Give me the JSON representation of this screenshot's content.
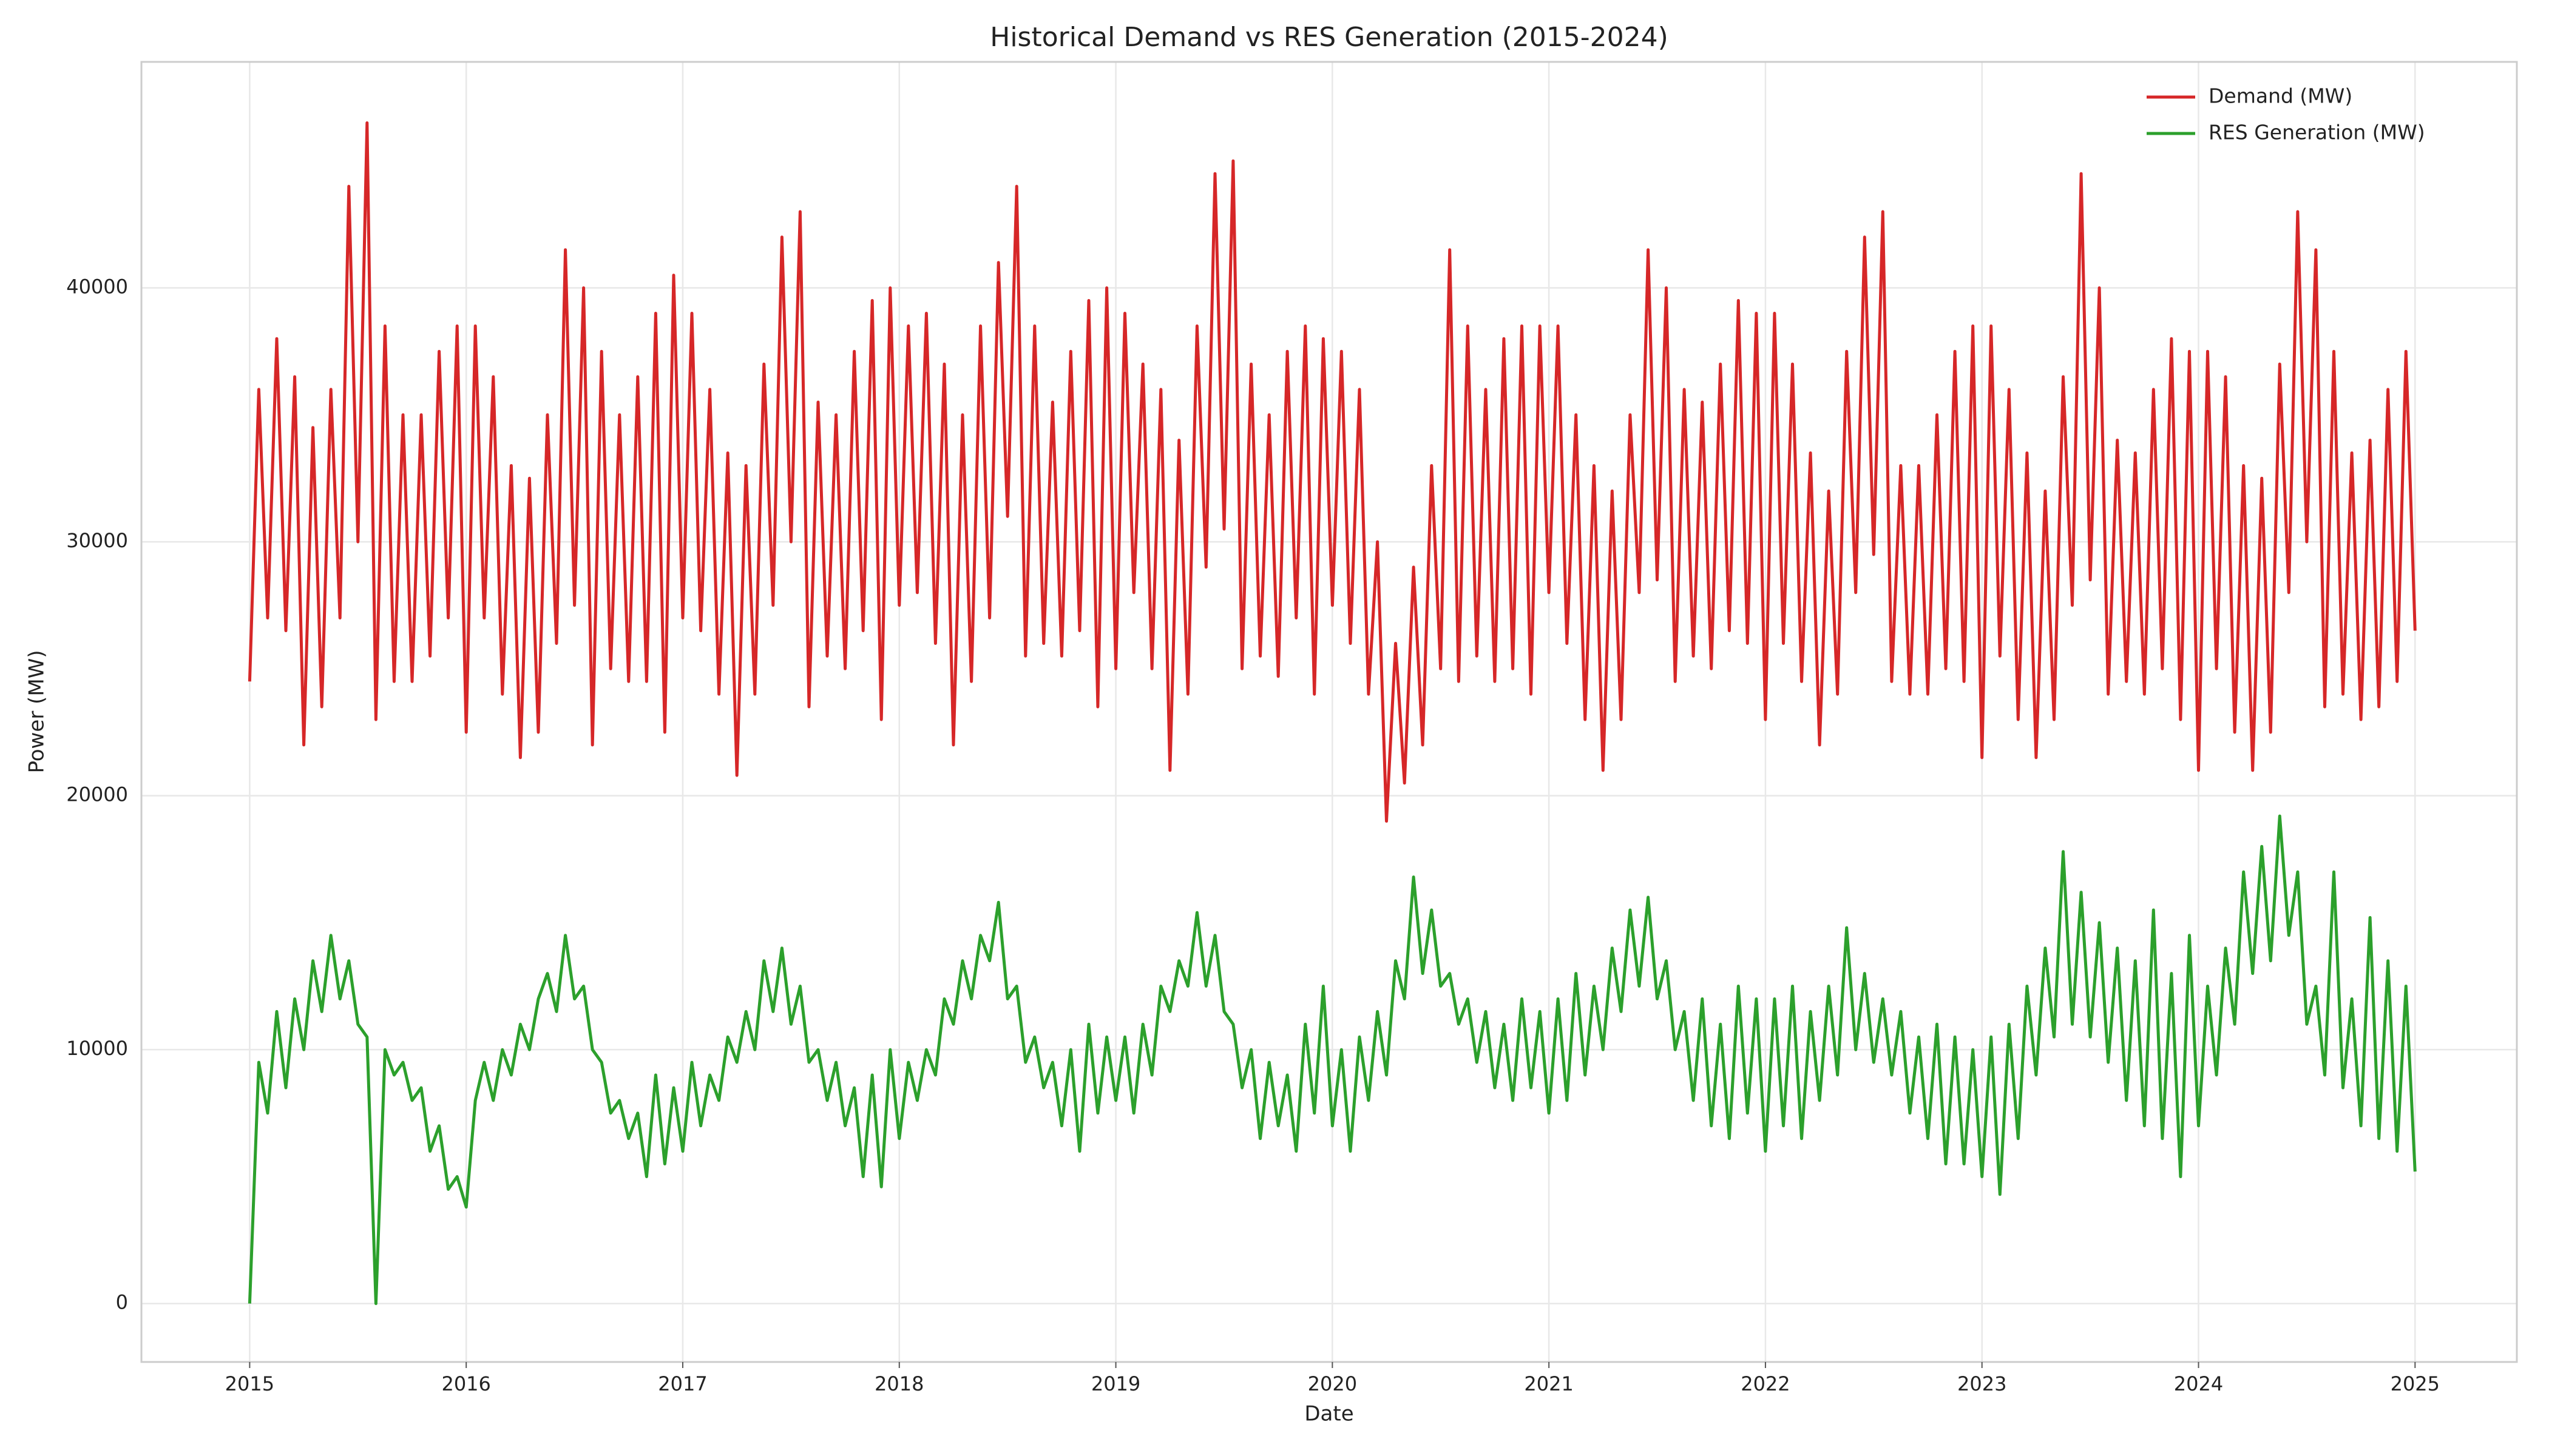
{
  "chart_data": {
    "type": "line",
    "title": "Historical Demand vs RES Generation (2015-2024)",
    "xlabel": "Date",
    "ylabel": "Power (MW)",
    "xlim": [
      2014.5,
      2025.47
    ],
    "xticks": [
      2015,
      2016,
      2017,
      2018,
      2019,
      2020,
      2021,
      2022,
      2023,
      2024,
      2025
    ],
    "ylim": [
      -2300,
      48900
    ],
    "yticks": [
      0,
      10000,
      20000,
      30000,
      40000
    ],
    "grid": true,
    "legend": "upper right",
    "x": [
      2015,
      2015.042,
      2015.083,
      2015.125,
      2015.167,
      2015.208,
      2015.25,
      2015.292,
      2015.333,
      2015.375,
      2015.417,
      2015.458,
      2015.5,
      2015.542,
      2015.583,
      2015.625,
      2015.667,
      2015.708,
      2015.75,
      2015.792,
      2015.833,
      2015.875,
      2015.917,
      2015.958,
      2016,
      2016.042,
      2016.083,
      2016.125,
      2016.167,
      2016.208,
      2016.25,
      2016.292,
      2016.333,
      2016.375,
      2016.417,
      2016.458,
      2016.5,
      2016.542,
      2016.583,
      2016.625,
      2016.667,
      2016.708,
      2016.75,
      2016.792,
      2016.833,
      2016.875,
      2016.917,
      2016.958,
      2017,
      2017.042,
      2017.083,
      2017.125,
      2017.167,
      2017.208,
      2017.25,
      2017.292,
      2017.333,
      2017.375,
      2017.417,
      2017.458,
      2017.5,
      2017.542,
      2017.583,
      2017.625,
      2017.667,
      2017.708,
      2017.75,
      2017.792,
      2017.833,
      2017.875,
      2017.917,
      2017.958,
      2018,
      2018.042,
      2018.083,
      2018.125,
      2018.167,
      2018.208,
      2018.25,
      2018.292,
      2018.333,
      2018.375,
      2018.417,
      2018.458,
      2018.5,
      2018.542,
      2018.583,
      2018.625,
      2018.667,
      2018.708,
      2018.75,
      2018.792,
      2018.833,
      2018.875,
      2018.917,
      2018.958,
      2019,
      2019.042,
      2019.083,
      2019.125,
      2019.167,
      2019.208,
      2019.25,
      2019.292,
      2019.333,
      2019.375,
      2019.417,
      2019.458,
      2019.5,
      2019.542,
      2019.583,
      2019.625,
      2019.667,
      2019.708,
      2019.75,
      2019.792,
      2019.833,
      2019.875,
      2019.917,
      2019.958,
      2020,
      2020.042,
      2020.083,
      2020.125,
      2020.167,
      2020.208,
      2020.25,
      2020.292,
      2020.333,
      2020.375,
      2020.417,
      2020.458,
      2020.5,
      2020.542,
      2020.583,
      2020.625,
      2020.667,
      2020.708,
      2020.75,
      2020.792,
      2020.833,
      2020.875,
      2020.917,
      2020.958,
      2021,
      2021.042,
      2021.083,
      2021.125,
      2021.167,
      2021.208,
      2021.25,
      2021.292,
      2021.333,
      2021.375,
      2021.417,
      2021.458,
      2021.5,
      2021.542,
      2021.583,
      2021.625,
      2021.667,
      2021.708,
      2021.75,
      2021.792,
      2021.833,
      2021.875,
      2021.917,
      2021.958,
      2022,
      2022.042,
      2022.083,
      2022.125,
      2022.167,
      2022.208,
      2022.25,
      2022.292,
      2022.333,
      2022.375,
      2022.417,
      2022.458,
      2022.5,
      2022.542,
      2022.583,
      2022.625,
      2022.667,
      2022.708,
      2022.75,
      2022.792,
      2022.833,
      2022.875,
      2022.917,
      2022.958,
      2023,
      2023.042,
      2023.083,
      2023.125,
      2023.167,
      2023.208,
      2023.25,
      2023.292,
      2023.333,
      2023.375,
      2023.417,
      2023.458,
      2023.5,
      2023.542,
      2023.583,
      2023.625,
      2023.667,
      2023.708,
      2023.75,
      2023.792,
      2023.833,
      2023.875,
      2023.917,
      2023.958,
      2024,
      2024.042,
      2024.083,
      2024.125,
      2024.167,
      2024.208,
      2024.25,
      2024.292,
      2024.333,
      2024.375,
      2024.417,
      2024.458,
      2024.5,
      2024.542,
      2024.583,
      2024.625,
      2024.667,
      2024.708,
      2024.75,
      2024.792,
      2024.833,
      2024.875,
      2024.917,
      2024.958,
      2025
    ],
    "series": [
      {
        "name": "Demand (MW)",
        "color": "#d62728",
        "values": [
          24500,
          36000,
          27000,
          38000,
          26500,
          36500,
          22000,
          34500,
          23500,
          36000,
          27000,
          44000,
          30000,
          46500,
          23000,
          38500,
          24500,
          35000,
          24500,
          35000,
          25500,
          37500,
          27000,
          38500,
          22500,
          38500,
          27000,
          36500,
          24000,
          33000,
          21500,
          32500,
          22500,
          35000,
          26000,
          41500,
          27500,
          40000,
          22000,
          37500,
          25000,
          35000,
          24500,
          36500,
          24500,
          39000,
          22500,
          40500,
          27000,
          39000,
          26500,
          36000,
          24000,
          33500,
          20800,
          33000,
          24000,
          37000,
          27500,
          42000,
          30000,
          43000,
          23500,
          35500,
          25500,
          35000,
          25000,
          37500,
          26500,
          39500,
          23000,
          40000,
          27500,
          38500,
          28000,
          39000,
          26000,
          37000,
          22000,
          35000,
          24500,
          38500,
          27000,
          41000,
          31000,
          44000,
          25500,
          38500,
          26000,
          35500,
          25500,
          37500,
          26500,
          39500,
          23500,
          40000,
          25000,
          39000,
          28000,
          37000,
          25000,
          36000,
          21000,
          34000,
          24000,
          38500,
          29000,
          44500,
          30500,
          45000,
          25000,
          37000,
          25500,
          35000,
          24700,
          37500,
          27000,
          38500,
          24000,
          38000,
          27500,
          37500,
          26000,
          36000,
          24000,
          30000,
          19000,
          26000,
          20500,
          29000,
          22000,
          33000,
          25000,
          41500,
          24500,
          38500,
          25500,
          36000,
          24500,
          38000,
          25000,
          38500,
          24000,
          38500,
          28000,
          38500,
          26000,
          35000,
          23000,
          33000,
          21000,
          32000,
          23000,
          35000,
          28000,
          41500,
          28500,
          40000,
          24500,
          36000,
          25500,
          35500,
          25000,
          37000,
          26500,
          39500,
          26000,
          39000,
          23000,
          39000,
          26000,
          37000,
          24500,
          33500,
          22000,
          32000,
          24000,
          37500,
          28000,
          42000,
          29500,
          43000,
          24500,
          33000,
          24000,
          33000,
          24000,
          35000,
          25000,
          37500,
          24500,
          38500,
          21500,
          38500,
          25500,
          36000,
          23000,
          33500,
          21500,
          32000,
          23000,
          36500,
          27500,
          44500,
          28500,
          40000,
          24000,
          34000,
          24500,
          33500,
          24000,
          36000,
          25000,
          38000,
          23000,
          37500,
          21000,
          37500,
          25000,
          36500,
          22500,
          33000,
          21000,
          32500,
          22500,
          37000,
          28000,
          43000,
          30000,
          41500,
          23500,
          37500,
          24000,
          33500,
          23000,
          34000,
          23500,
          36000,
          24500,
          37500,
          26500
        ]
      },
      {
        "name": "RES Generation (MW)",
        "color": "#2ca02c",
        "values": [
          0,
          9500,
          7500,
          11500,
          8500,
          12000,
          10000,
          13500,
          11500,
          14500,
          12000,
          13500,
          11000,
          10500,
          0,
          10000,
          9000,
          9500,
          8000,
          8500,
          6000,
          7000,
          4500,
          5000,
          3800,
          8000,
          9500,
          8000,
          10000,
          9000,
          11000,
          10000,
          12000,
          13000,
          11500,
          14500,
          12000,
          12500,
          10000,
          9500,
          7500,
          8000,
          6500,
          7500,
          5000,
          9000,
          5500,
          8500,
          6000,
          9500,
          7000,
          9000,
          8000,
          10500,
          9500,
          11500,
          10000,
          13500,
          11500,
          14000,
          11000,
          12500,
          9500,
          10000,
          8000,
          9500,
          7000,
          8500,
          5000,
          9000,
          4600,
          10000,
          6500,
          9500,
          8000,
          10000,
          9000,
          12000,
          11000,
          13500,
          12000,
          14500,
          13500,
          15800,
          12000,
          12500,
          9500,
          10500,
          8500,
          9500,
          7000,
          10000,
          6000,
          11000,
          7500,
          10500,
          8000,
          10500,
          7500,
          11000,
          9000,
          12500,
          11500,
          13500,
          12500,
          15400,
          12500,
          14500,
          11500,
          11000,
          8500,
          10000,
          6500,
          9500,
          7000,
          9000,
          6000,
          11000,
          7500,
          12500,
          7000,
          10000,
          6000,
          10500,
          8000,
          11500,
          9000,
          13500,
          12000,
          16800,
          13000,
          15500,
          12500,
          13000,
          11000,
          12000,
          9500,
          11500,
          8500,
          11000,
          8000,
          12000,
          8500,
          11500,
          7500,
          12000,
          8000,
          13000,
          9000,
          12500,
          10000,
          14000,
          11500,
          15500,
          12500,
          16000,
          12000,
          13500,
          10000,
          11500,
          8000,
          12000,
          7000,
          11000,
          6500,
          12500,
          7500,
          12000,
          6000,
          12000,
          7000,
          12500,
          6500,
          11500,
          8000,
          12500,
          9000,
          14800,
          10000,
          13000,
          9500,
          12000,
          9000,
          11500,
          7500,
          10500,
          6500,
          11000,
          5500,
          10500,
          5500,
          10000,
          5000,
          10500,
          4300,
          11000,
          6500,
          12500,
          9000,
          14000,
          10500,
          17800,
          11000,
          16200,
          10500,
          15000,
          9500,
          14000,
          8000,
          13500,
          7000,
          15500,
          6500,
          13000,
          5000,
          14500,
          7000,
          12500,
          9000,
          14000,
          11000,
          17000,
          13000,
          18000,
          13500,
          19200,
          14500,
          17000,
          11000,
          12500,
          9000,
          17000,
          8500,
          12000,
          7000,
          15200,
          6500,
          13500,
          6000,
          12500,
          5200
        ]
      }
    ]
  }
}
